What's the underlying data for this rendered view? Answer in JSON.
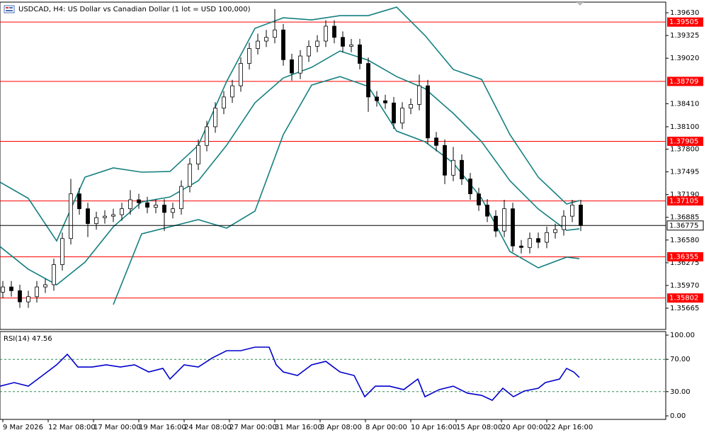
{
  "chart_data": [
    {
      "type": "candlestick",
      "title": "USDCAD, H4:  US Dollar vs Canadian Dollar (1 lot = USD 100,000)",
      "x": [
        0,
        3,
        6,
        9,
        12,
        15,
        18,
        21,
        24,
        27,
        30,
        33,
        36,
        39,
        42,
        45,
        48,
        51,
        54,
        57,
        60,
        63,
        66,
        69,
        72,
        75,
        78,
        81,
        84,
        87,
        90,
        93,
        96,
        99,
        102,
        105,
        108,
        111,
        114,
        117,
        120,
        123,
        126,
        129,
        132,
        135,
        138,
        141,
        144,
        147,
        150,
        153,
        156,
        159,
        162,
        165,
        168,
        171,
        174,
        177,
        180,
        183,
        186,
        189,
        192,
        195,
        198,
        201,
        204
      ],
      "open": [
        1.3588,
        1.3595,
        1.359,
        1.3575,
        1.3582,
        1.3595,
        1.3598,
        1.3625,
        1.366,
        1.372,
        1.37,
        1.368,
        1.3688,
        1.369,
        1.3692,
        1.37,
        1.3712,
        1.3708,
        1.3702,
        1.3705,
        1.3695,
        1.37,
        1.373,
        1.376,
        1.3785,
        1.381,
        1.3835,
        1.385,
        1.3865,
        1.3895,
        1.3915,
        1.3925,
        1.393,
        1.394,
        1.39,
        1.3882,
        1.3905,
        1.3918,
        1.3925,
        1.3945,
        1.393,
        1.3918,
        1.392,
        1.3895,
        1.385,
        1.3845,
        1.3842,
        1.3815,
        1.3835,
        1.384,
        1.3865,
        1.3795,
        1.3785,
        1.3745,
        1.3765,
        1.374,
        1.372,
        1.3705,
        1.369,
        1.367,
        1.37,
        1.365,
        1.3648,
        1.366,
        1.3655,
        1.3668,
        1.3672,
        1.369,
        1.3705
      ],
      "high": [
        1.3603,
        1.3603,
        1.3598,
        1.359,
        1.3603,
        1.3606,
        1.3633,
        1.3668,
        1.374,
        1.3728,
        1.3708,
        1.3696,
        1.3698,
        1.37,
        1.3708,
        1.3725,
        1.372,
        1.3716,
        1.3713,
        1.3713,
        1.3708,
        1.3738,
        1.3768,
        1.3793,
        1.3818,
        1.3843,
        1.3858,
        1.3873,
        1.3903,
        1.3923,
        1.3935,
        1.394,
        1.3968,
        1.3948,
        1.3908,
        1.3913,
        1.3926,
        1.3933,
        1.3953,
        1.3953,
        1.3938,
        1.3928,
        1.3928,
        1.3903,
        1.3858,
        1.3853,
        1.385,
        1.3843,
        1.3848,
        1.388,
        1.3873,
        1.3803,
        1.3793,
        1.3783,
        1.3773,
        1.3748,
        1.3728,
        1.3713,
        1.3698,
        1.3712,
        1.3708,
        1.3658,
        1.3668,
        1.3668,
        1.3676,
        1.368,
        1.3698,
        1.3712,
        1.3712
      ],
      "low": [
        1.358,
        1.3582,
        1.3567,
        1.3567,
        1.3574,
        1.3587,
        1.359,
        1.3617,
        1.3652,
        1.3692,
        1.3662,
        1.3672,
        1.368,
        1.3682,
        1.3684,
        1.3692,
        1.37,
        1.3694,
        1.3694,
        1.367,
        1.3687,
        1.3692,
        1.3722,
        1.3752,
        1.3777,
        1.3802,
        1.3827,
        1.3842,
        1.3857,
        1.3887,
        1.3907,
        1.3917,
        1.3922,
        1.3892,
        1.3872,
        1.3874,
        1.3897,
        1.391,
        1.3917,
        1.3922,
        1.391,
        1.391,
        1.3887,
        1.383,
        1.3837,
        1.3834,
        1.3807,
        1.3807,
        1.3827,
        1.3832,
        1.3787,
        1.3777,
        1.3733,
        1.3737,
        1.3732,
        1.3712,
        1.3697,
        1.3682,
        1.3662,
        1.3662,
        1.3642,
        1.364,
        1.364,
        1.3647,
        1.3647,
        1.366,
        1.3664,
        1.3682,
        1.367
      ],
      "close": [
        1.3595,
        1.359,
        1.3575,
        1.3582,
        1.3595,
        1.3598,
        1.3625,
        1.366,
        1.372,
        1.37,
        1.368,
        1.3688,
        1.369,
        1.3692,
        1.37,
        1.3712,
        1.3708,
        1.3702,
        1.3705,
        1.3695,
        1.37,
        1.373,
        1.376,
        1.3785,
        1.381,
        1.3835,
        1.385,
        1.3865,
        1.3895,
        1.3915,
        1.3925,
        1.393,
        1.394,
        1.39,
        1.3882,
        1.3905,
        1.3918,
        1.3925,
        1.3945,
        1.393,
        1.3918,
        1.392,
        1.3895,
        1.385,
        1.3845,
        1.3842,
        1.3815,
        1.3835,
        1.384,
        1.3865,
        1.3795,
        1.3785,
        1.3745,
        1.3765,
        1.374,
        1.372,
        1.3705,
        1.369,
        1.367,
        1.37,
        1.365,
        1.3648,
        1.366,
        1.3655,
        1.3668,
        1.3672,
        1.369,
        1.3705,
        1.36775
      ],
      "bull_color": "#ffffff",
      "bear_color": "#000000",
      "wick_color": "#000000",
      "overlay_x": [
        -1,
        9,
        19,
        29,
        39,
        49,
        59,
        69,
        79,
        89,
        99,
        109,
        119,
        129,
        139,
        149,
        159,
        169,
        179,
        189,
        199,
        203.5
      ],
      "overlays": [
        {
          "color": "#168080",
          "values": [
            1.37357,
            1.37139,
            1.36568,
            1.37424,
            1.37548,
            1.37491,
            1.375,
            1.37852,
            1.38708,
            1.39421,
            1.39563,
            1.39535,
            1.39592,
            1.39592,
            1.39706,
            1.39326,
            1.38869,
            1.38736,
            1.37995,
            1.37424,
            1.37063,
            1.3711
          ]
        },
        {
          "color": "#168080",
          "values": [
            1.36492,
            1.36188,
            1.35979,
            1.36283,
            1.36758,
            1.37091,
            1.37158,
            1.37376,
            1.37852,
            1.38422,
            1.38755,
            1.38898,
            1.39117,
            1.38993,
            1.38774,
            1.38613,
            1.3828,
            1.37899,
            1.37376,
            1.36996,
            1.36711,
            1.3673
          ]
        },
        {
          "color": "#168080",
          "values": [
            null,
            null,
            null,
            null,
            1.35713,
            1.36663,
            1.36758,
            1.36854,
            1.3674,
            1.36968,
            1.37995,
            1.3866,
            1.38774,
            1.38641,
            1.38042,
            1.37899,
            1.37614,
            1.37139,
            1.36426,
            1.36207,
            1.3635,
            1.3633
          ]
        }
      ],
      "levels": [
        1.39505,
        1.38709,
        1.37905,
        1.37105,
        1.36355,
        1.35802
      ],
      "level_color": "#ff0000",
      "current_price": 1.36775,
      "xlim": [
        -1,
        234
      ],
      "ylim": [
        1.3538,
        1.39773
      ],
      "yticks": [
        {
          "value": 1.3963,
          "label": "1.39630"
        },
        1.39325,
        {
          "value": 1.3902,
          "label": "1.39020"
        },
        {
          "value": 1.3841,
          "label": "1.38410"
        },
        {
          "value": 1.381,
          "label": "1.38100"
        },
        {
          "value": 1.378,
          "label": "1.37800"
        },
        1.37495,
        {
          "value": 1.3719,
          "label": "1.37190"
        },
        1.36885,
        {
          "value": 1.3658,
          "label": "1.36580"
        },
        1.36275,
        {
          "value": 1.3597,
          "label": "1.35970"
        },
        1.35665
      ],
      "xticks": [
        {
          "value": 0,
          "label": "9 Mar 2026"
        },
        {
          "value": 16,
          "label": "12 Mar 08:00"
        },
        {
          "value": 32,
          "label": "17 Mar 00:00"
        },
        {
          "value": 48,
          "label": "19 Mar 16:00"
        },
        {
          "value": 64,
          "label": "24 Mar 08:00"
        },
        {
          "value": 80,
          "label": "27 Mar 00:00"
        },
        {
          "value": 96,
          "label": "31 Mar 16:00"
        },
        {
          "value": 112,
          "label": "3 Apr 08:00"
        },
        {
          "value": 128,
          "label": "8 Apr 00:00"
        },
        {
          "value": 144,
          "label": "10 Apr 16:00"
        },
        {
          "value": 160,
          "label": "15 Apr 08:00"
        },
        {
          "value": 176,
          "label": "20 Apr 00:00"
        },
        {
          "value": 192,
          "label": "22 Apr 16:00"
        }
      ]
    },
    {
      "type": "line",
      "title": "RSI(14) 47.56",
      "x": [
        -1,
        4,
        9,
        14,
        19,
        22.75,
        26.5,
        31.5,
        36.5,
        41.5,
        46.5,
        51.5,
        56.5,
        59,
        64,
        69,
        74,
        79,
        84,
        89,
        94,
        96.5,
        99,
        104,
        109,
        114,
        119,
        124,
        127.75,
        131.5,
        136.5,
        141.5,
        146.5,
        149,
        154,
        159,
        164,
        169,
        172.75,
        176.5,
        180.25,
        184,
        189,
        191.5,
        196.5,
        199,
        201.5,
        203.5
      ],
      "values": [
        36.8,
        41.2,
        36.8,
        50,
        63.2,
        76.3,
        60.5,
        60.5,
        63.2,
        60.5,
        63.2,
        54.4,
        58.8,
        45.6,
        63.2,
        60.5,
        71.9,
        80.7,
        80.7,
        85.1,
        85.1,
        63.2,
        54.4,
        50,
        63.2,
        67.5,
        54.4,
        50,
        23.7,
        36.8,
        36.8,
        32.5,
        45.6,
        23.7,
        32.5,
        36.8,
        28.1,
        25.4,
        19.3,
        34.2,
        23.7,
        30.7,
        34.2,
        41.2,
        45.6,
        58.8,
        54.4,
        47.56
      ],
      "color": "#0000cd",
      "levels": [
        70,
        30
      ],
      "level_color": "#2e8b57",
      "xlim": [
        -1,
        234
      ],
      "ylim": [
        -4.39,
        104.39
      ],
      "yticks": [
        {
          "value": 100,
          "label": "100.00"
        },
        {
          "value": 70,
          "label": "70.00"
        },
        {
          "value": 30,
          "label": "30.00"
        },
        {
          "value": 0,
          "label": "0.00"
        }
      ]
    }
  ]
}
